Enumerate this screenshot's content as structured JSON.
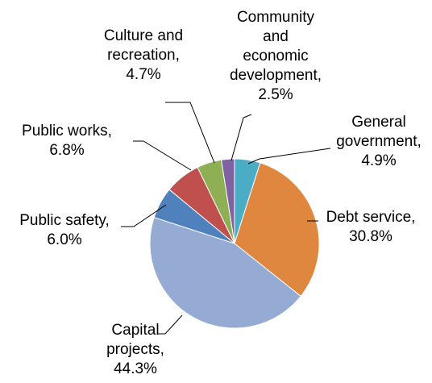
{
  "chart_data": {
    "type": "pie",
    "title": "",
    "slices": [
      {
        "lines": [
          "General",
          "government,",
          "4.9%"
        ],
        "name": "General government",
        "value": 4.9,
        "color": "#4bacc6"
      },
      {
        "lines": [
          "Debt service,",
          "30.8%"
        ],
        "name": "Debt service",
        "value": 30.8,
        "color": "#e0873f"
      },
      {
        "lines": [
          "Capital",
          "projects,",
          "44.3%"
        ],
        "name": "Capital projects",
        "value": 44.3,
        "color": "#95abd4"
      },
      {
        "lines": [
          "Public safety,",
          "6.0%"
        ],
        "name": "Public safety",
        "value": 6.0,
        "color": "#4f81bd"
      },
      {
        "lines": [
          "Public works,",
          "6.8%"
        ],
        "name": "Public works",
        "value": 6.8,
        "color": "#c0504d"
      },
      {
        "lines": [
          "Culture and",
          "recreation,",
          "4.7%"
        ],
        "name": "Culture and recreation",
        "value": 4.7,
        "color": "#8faf55"
      },
      {
        "lines": [
          "Community",
          "and",
          "economic",
          "development,",
          "2.5%"
        ],
        "name": "Community and economic development",
        "value": 2.5,
        "color": "#7e62a1"
      }
    ]
  }
}
